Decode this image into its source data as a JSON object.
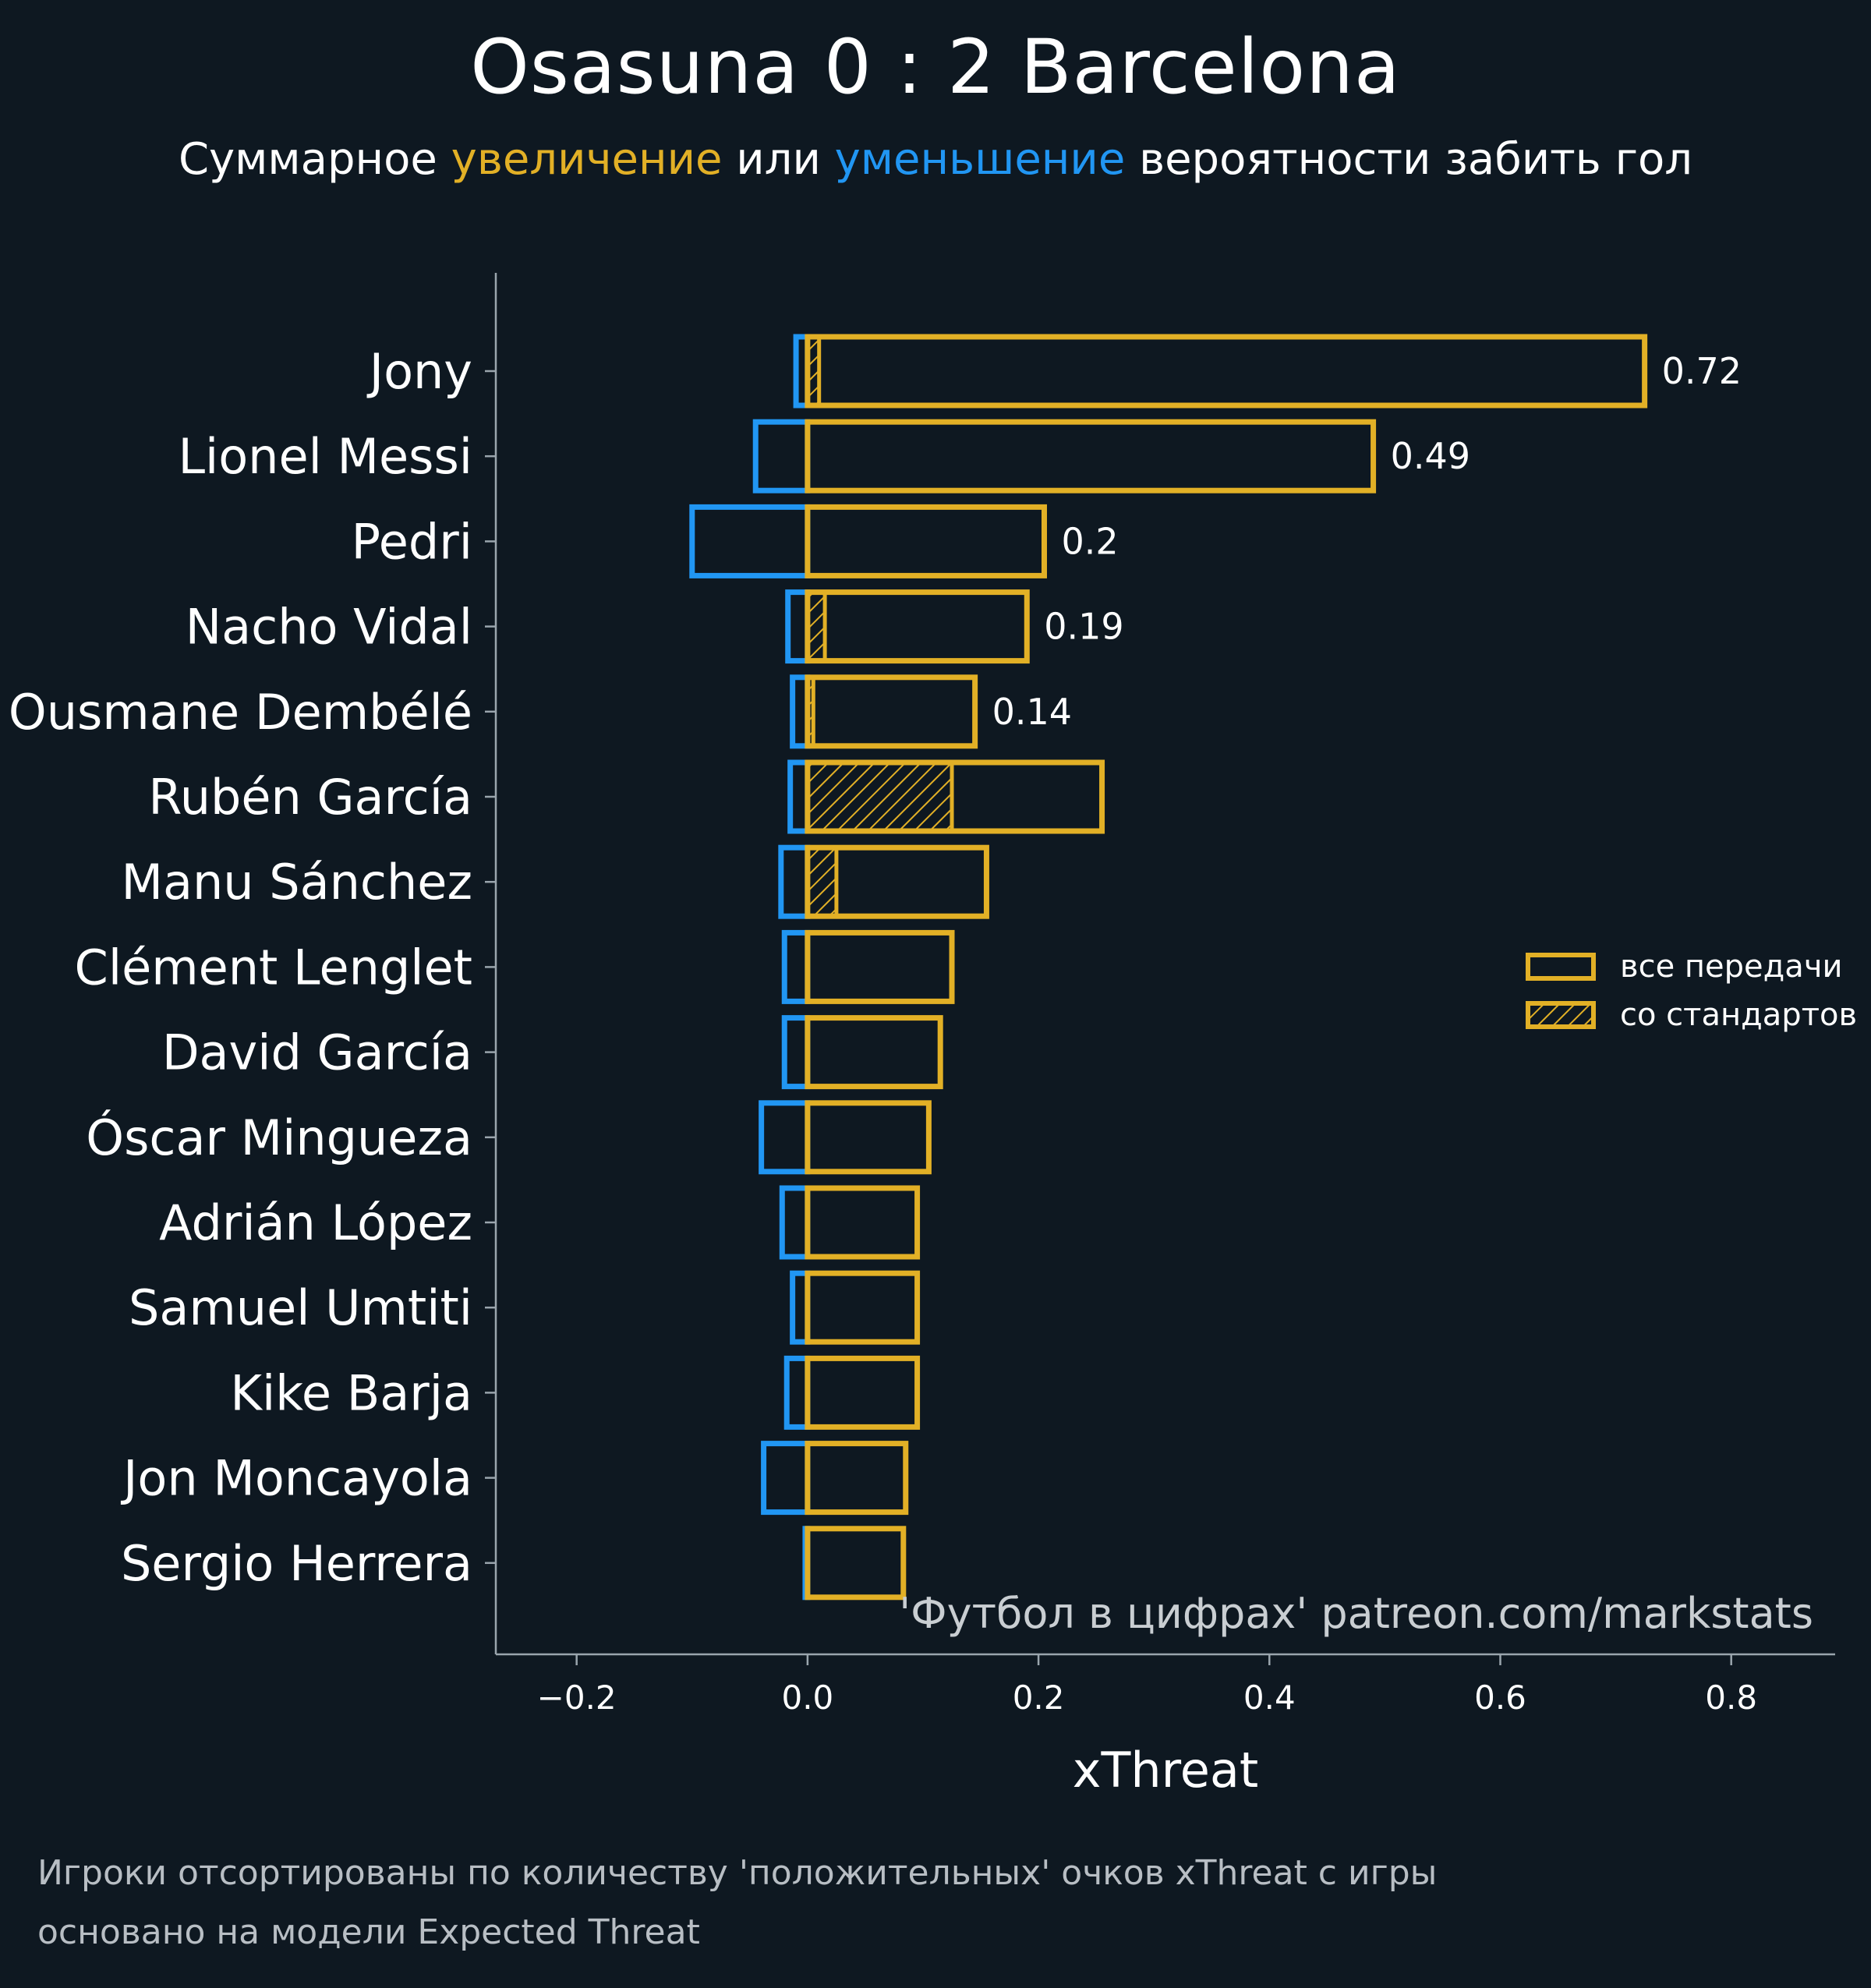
{
  "title": "Osasuna 0 : 2 Barcelona",
  "subtitle": {
    "part1": "Суммарное ",
    "inc": "увеличение",
    "part2": " или ",
    "dec": "уменьшение",
    "part3": " вероятности забить гол"
  },
  "colors": {
    "background": "#0e1821",
    "positive": "#e2b026",
    "negative": "#2196f3",
    "axis": "#9aa5ad",
    "text": "#ffffff"
  },
  "chart_data": {
    "type": "bar",
    "orientation": "horizontal",
    "xlabel": "xThreat",
    "ylabel": "",
    "xlim": [
      -0.27,
      0.89
    ],
    "xticks": [
      -0.2,
      0.0,
      0.2,
      0.4,
      0.6,
      0.8
    ],
    "xtick_labels": [
      "−0.2",
      "0.0",
      "0.2",
      "0.4",
      "0.6",
      "0.8"
    ],
    "grid": false,
    "legend": {
      "position": "right",
      "entries": [
        {
          "label": "все передачи",
          "style": "outline"
        },
        {
          "label": "со стандартов",
          "style": "hatched"
        }
      ]
    },
    "watermark": "'Футбол в цифрах' patreon.com/markstats",
    "categories": [
      "Jony",
      "Lionel Messi",
      "Pedri",
      "Nacho Vidal",
      "Ousmane Dembélé",
      "Rubén García",
      "Manu Sánchez",
      "Clément Lenglet",
      "David García",
      "Óscar Mingueza",
      "Adrián López",
      "Samuel Umtiti",
      "Kike Barja",
      "Jon Moncayola",
      "Sergio Herrera"
    ],
    "series": [
      {
        "name": "все передачи (положительные)",
        "values": [
          0.725,
          0.49,
          0.205,
          0.19,
          0.145,
          0.255,
          0.155,
          0.125,
          0.115,
          0.105,
          0.095,
          0.095,
          0.095,
          0.085,
          0.083
        ]
      },
      {
        "name": "все передачи (отрицательные)",
        "values": [
          -0.01,
          -0.045,
          -0.1,
          -0.017,
          -0.013,
          -0.015,
          -0.023,
          -0.02,
          -0.02,
          -0.04,
          -0.022,
          -0.013,
          -0.018,
          -0.038,
          -0.002
        ]
      },
      {
        "name": "со стандартов",
        "values": [
          0.01,
          0.0,
          0.0,
          0.015,
          0.005,
          0.125,
          0.025,
          0.0,
          0.0,
          0.0,
          0.0,
          0.0,
          0.0,
          0.0,
          0.0
        ]
      }
    ],
    "value_labels": [
      {
        "category": "Jony",
        "text": "0.72"
      },
      {
        "category": "Lionel Messi",
        "text": "0.49"
      },
      {
        "category": "Pedri",
        "text": "0.2"
      },
      {
        "category": "Nacho Vidal",
        "text": "0.19"
      },
      {
        "category": "Ousmane Dembélé",
        "text": "0.14"
      }
    ]
  },
  "footer": {
    "line1": "Игроки отсортированы по количеству 'положительных' очков xThreat с игры",
    "line2": "основано на модели Expected Threat"
  }
}
